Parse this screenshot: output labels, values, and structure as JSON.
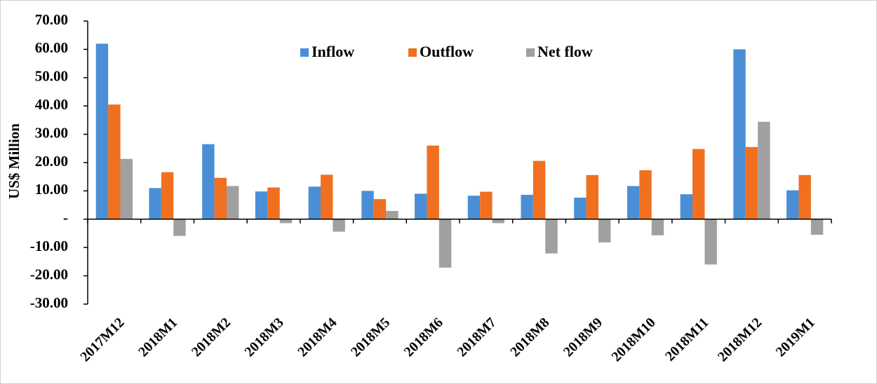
{
  "chart_data": {
    "type": "bar",
    "y_label": "US$ Million",
    "categories": [
      "2017M12",
      "2018M1",
      "2018M2",
      "2018M3",
      "2018M4",
      "2018M5",
      "2018M6",
      "2018M7",
      "2018M8",
      "2018M9",
      "2018M10",
      "2018M11",
      "2018M12",
      "2019M1"
    ],
    "series": [
      {
        "name": "Inflow",
        "color": "#4a8fd6",
        "values": [
          62.0,
          11.0,
          26.5,
          9.8,
          11.5,
          10.0,
          9.0,
          8.3,
          8.6,
          7.6,
          11.7,
          8.8,
          60.0,
          10.2
        ]
      },
      {
        "name": "Outflow",
        "color": "#f07020",
        "values": [
          40.5,
          16.6,
          14.6,
          11.2,
          15.7,
          7.1,
          26.0,
          9.7,
          20.6,
          15.6,
          17.3,
          24.8,
          25.5,
          15.6
        ]
      },
      {
        "name": "Net flow",
        "color": "#a0a0a0",
        "values": [
          21.3,
          -5.9,
          11.7,
          -1.4,
          -4.4,
          2.9,
          -17.1,
          -1.4,
          -12.1,
          -8.2,
          -5.7,
          -16.0,
          34.4,
          -5.5
        ]
      }
    ],
    "ylim": [
      -30,
      70
    ],
    "yticks": [
      {
        "value": -30,
        "label": "-30.00"
      },
      {
        "value": -20,
        "label": "-20.00"
      },
      {
        "value": -10,
        "label": "-10.00"
      },
      {
        "value": 0,
        "label": "-"
      },
      {
        "value": 10,
        "label": "10.00"
      },
      {
        "value": 20,
        "label": "20.00"
      },
      {
        "value": 30,
        "label": "30.00"
      },
      {
        "value": 40,
        "label": "40.00"
      },
      {
        "value": 50,
        "label": "50.00"
      },
      {
        "value": 60,
        "label": "60.00"
      },
      {
        "value": 70,
        "label": "70.00"
      }
    ],
    "grid": false,
    "legend": "top"
  }
}
